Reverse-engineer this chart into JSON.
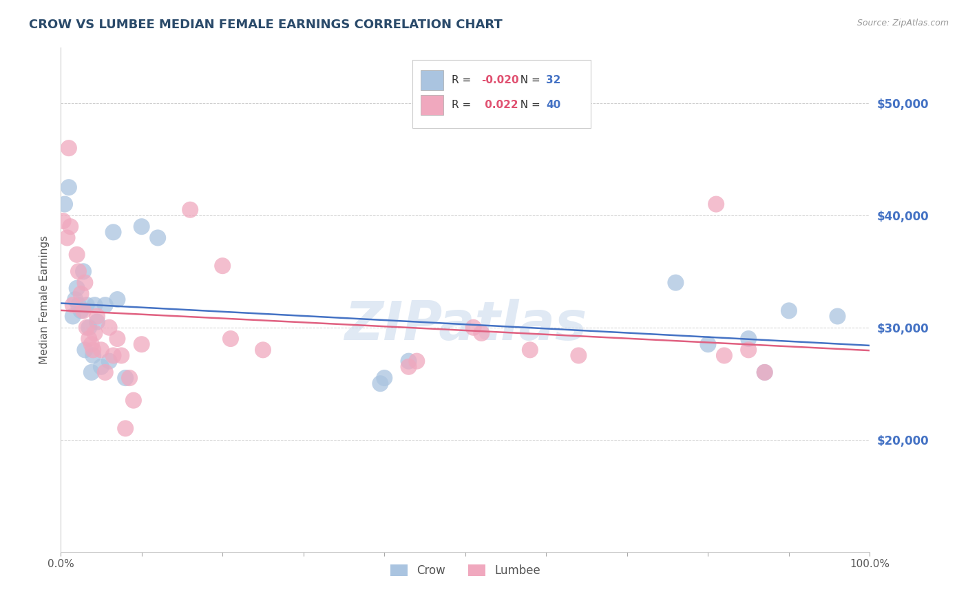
{
  "title": "CROW VS LUMBEE MEDIAN FEMALE EARNINGS CORRELATION CHART",
  "source": "Source: ZipAtlas.com",
  "ylabel": "Median Female Earnings",
  "watermark": "ZIPatlas",
  "crow_R": -0.02,
  "crow_N": 32,
  "lumbee_R": 0.022,
  "lumbee_N": 40,
  "crow_color": "#aac4e0",
  "lumbee_color": "#f0a8be",
  "crow_line_color": "#4472c4",
  "lumbee_line_color": "#e06080",
  "title_color": "#2a4a6a",
  "ytick_color": "#4472c4",
  "legend_R_color": "#e05070",
  "legend_N_color": "#4472c4",
  "background_color": "#ffffff",
  "grid_color": "#cccccc",
  "crow_x": [
    0.5,
    1.0,
    1.5,
    1.8,
    2.0,
    2.2,
    2.5,
    2.8,
    3.0,
    3.2,
    3.5,
    3.8,
    4.0,
    4.2,
    4.5,
    5.0,
    5.5,
    6.0,
    6.5,
    7.0,
    8.0,
    10.0,
    12.0,
    39.5,
    40.0,
    43.0,
    76.0,
    80.0,
    85.0,
    87.0,
    90.0,
    96.0
  ],
  "crow_y": [
    41000,
    42500,
    31000,
    32500,
    33500,
    32000,
    31500,
    35000,
    28000,
    32000,
    30000,
    26000,
    27500,
    32000,
    30500,
    26500,
    32000,
    27000,
    38500,
    32500,
    25500,
    39000,
    38000,
    25000,
    25500,
    27000,
    34000,
    28500,
    29000,
    26000,
    31500,
    31000
  ],
  "lumbee_x": [
    0.3,
    0.8,
    1.0,
    1.2,
    1.5,
    2.0,
    2.2,
    2.5,
    2.8,
    3.0,
    3.2,
    3.5,
    3.8,
    4.0,
    4.2,
    4.5,
    5.0,
    5.5,
    6.0,
    6.5,
    7.0,
    7.5,
    8.0,
    8.5,
    9.0,
    10.0,
    16.0,
    20.0,
    21.0,
    25.0,
    43.0,
    44.0,
    51.0,
    52.0,
    58.0,
    64.0,
    81.0,
    82.0,
    85.0,
    87.0
  ],
  "lumbee_y": [
    39500,
    38000,
    46000,
    39000,
    32000,
    36500,
    35000,
    33000,
    31500,
    34000,
    30000,
    29000,
    28500,
    28000,
    29500,
    31000,
    28000,
    26000,
    30000,
    27500,
    29000,
    27500,
    21000,
    25500,
    23500,
    28500,
    40500,
    35500,
    29000,
    28000,
    26500,
    27000,
    30000,
    29500,
    28000,
    27500,
    41000,
    27500,
    28000,
    26000
  ],
  "xlim": [
    0.0,
    100.0
  ],
  "ylim": [
    10000,
    55000
  ],
  "yticks": [
    20000,
    30000,
    40000,
    50000
  ],
  "ytick_labels": [
    "$20,000",
    "$30,000",
    "$40,000",
    "$50,000"
  ],
  "xticks": [
    0.0,
    10.0,
    20.0,
    30.0,
    40.0,
    50.0,
    60.0,
    70.0,
    80.0,
    90.0,
    100.0
  ],
  "xtick_labels": [
    "0.0%",
    "",
    "",
    "",
    "",
    "",
    "",
    "",
    "",
    "",
    "100.0%"
  ]
}
